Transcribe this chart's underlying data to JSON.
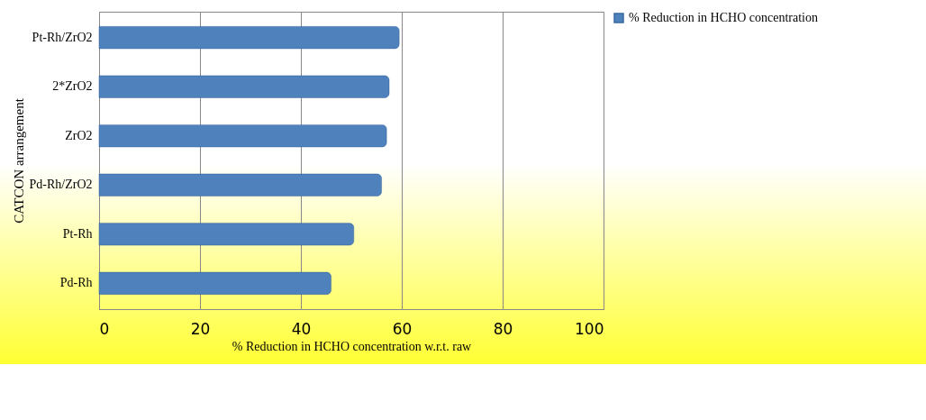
{
  "chart_data": {
    "type": "bar",
    "orientation": "horizontal",
    "xlabel": "% Reduction in HCHO concentration w.r.t. raw",
    "ylabel": "CATCON arrangement",
    "categories": [
      "Pt-Rh/ZrO2",
      "2*ZrO2",
      "ZrO2",
      "Pd-Rh/ZrO2",
      "Pt-Rh",
      "Pd-Rh"
    ],
    "series": [
      {
        "name": "% Reduction in HCHO concentration",
        "color": "#4f81bd",
        "values": [
          59.5,
          57.5,
          57,
          56,
          50.5,
          46
        ]
      }
    ],
    "xlim": [
      0,
      100
    ],
    "xticks": [
      0,
      20,
      40,
      60,
      80,
      100
    ],
    "grid": "x",
    "legend": "right"
  }
}
